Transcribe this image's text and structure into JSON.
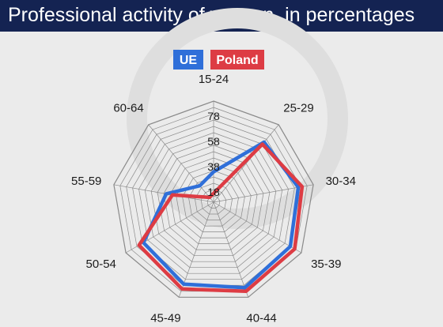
{
  "header": {
    "title": "Professional activity of women, in percentages"
  },
  "colors": {
    "header_bg": "#142352",
    "background": "#ebebeb",
    "ue": "#2f6fd9",
    "poland": "#dd3c44",
    "grid": "#8a8a8a"
  },
  "chart_data": {
    "type": "radar",
    "title": "Professional activity of women, in percentages",
    "categories": [
      "15-24",
      "25-29",
      "30-34",
      "35-39",
      "40-44",
      "45-49",
      "50-54",
      "55-59",
      "60-64"
    ],
    "r_ticks": [
      18,
      38,
      58,
      78
    ],
    "r_grid": [
      10,
      15,
      20,
      25,
      30,
      35,
      40,
      45,
      50,
      55,
      60,
      65,
      70,
      75,
      80,
      85,
      90
    ],
    "r_range": [
      10,
      90
    ],
    "legend_position": "top-center",
    "grid": true,
    "series": [
      {
        "name": "UE",
        "color": "#2f6fd9",
        "values": [
          34,
          72,
          78,
          80,
          82,
          79,
          74,
          48,
          27
        ]
      },
      {
        "name": "Poland",
        "color": "#dd3c44",
        "values": [
          17,
          70,
          81,
          84,
          85,
          83,
          78,
          43,
          15
        ]
      }
    ]
  }
}
